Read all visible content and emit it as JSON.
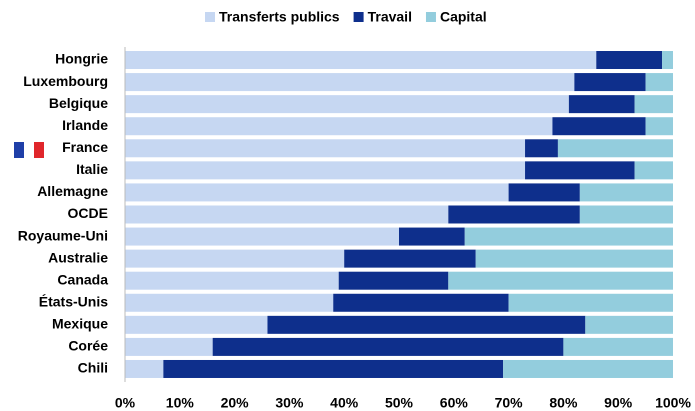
{
  "chart_data": {
    "type": "stacked-bar-horizontal",
    "categories": [
      "Hongrie",
      "Luxembourg",
      "Belgique",
      "Irlande",
      "France",
      "Italie",
      "Allemagne",
      "OCDE",
      "Royaume-Uni",
      "Australie",
      "Canada",
      "États-Unis",
      "Mexique",
      "Corée",
      "Chili"
    ],
    "series": [
      {
        "name": "Transferts publics",
        "color": "#c6d7f2",
        "values": [
          86,
          82,
          81,
          78,
          73,
          73,
          70,
          59,
          50,
          40,
          39,
          38,
          26,
          16,
          7
        ]
      },
      {
        "name": "Travail",
        "color": "#0e2f8c",
        "values": [
          12,
          13,
          12,
          17,
          6,
          20,
          13,
          24,
          12,
          24,
          20,
          32,
          58,
          64,
          62
        ]
      },
      {
        "name": "Capital",
        "color": "#93cddd",
        "values": [
          2,
          5,
          7,
          5,
          21,
          7,
          17,
          17,
          38,
          36,
          41,
          30,
          16,
          20,
          31
        ]
      }
    ],
    "xlim": [
      0,
      100
    ],
    "xticks": [
      {
        "value": 0,
        "label": "0%"
      },
      {
        "value": 10,
        "label": "10%"
      },
      {
        "value": 20,
        "label": "20%"
      },
      {
        "value": 30,
        "label": "30%"
      },
      {
        "value": 40,
        "label": "40%"
      },
      {
        "value": 50,
        "label": "50%"
      },
      {
        "value": 60,
        "label": "60%"
      },
      {
        "value": 70,
        "label": "70%"
      },
      {
        "value": 80,
        "label": "80%"
      },
      {
        "value": 90,
        "label": "90%"
      },
      {
        "value": 100,
        "label": "100%"
      }
    ],
    "legend": "top"
  }
}
